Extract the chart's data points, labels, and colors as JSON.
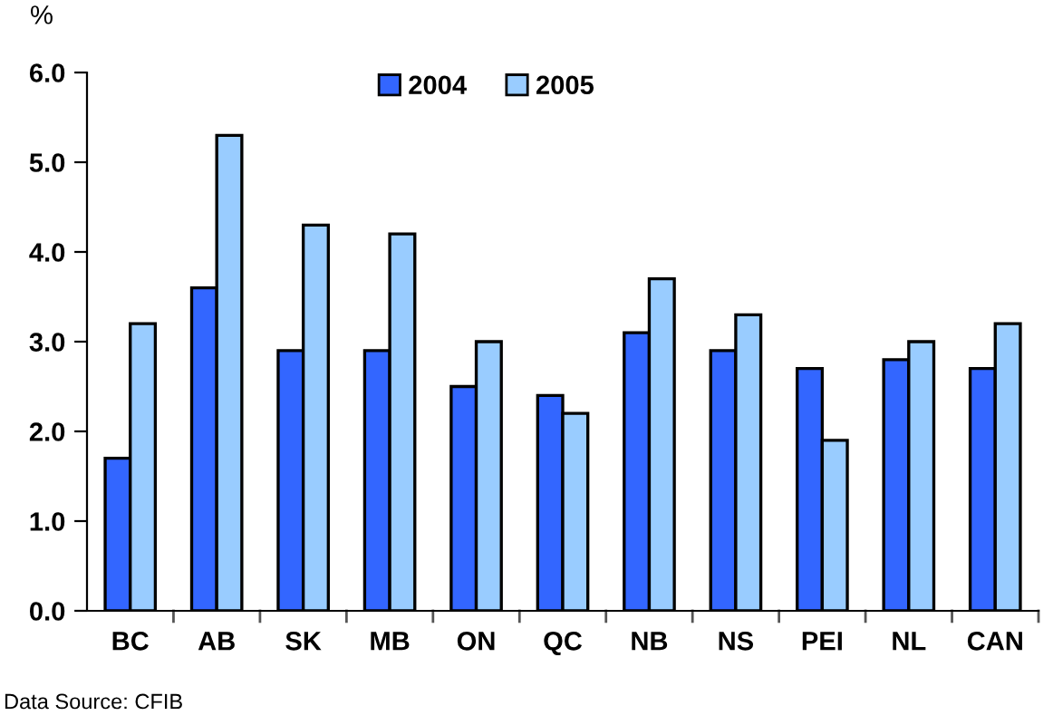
{
  "chart_data": {
    "type": "bar",
    "ylabel": "%",
    "categories": [
      "BC",
      "AB",
      "SK",
      "MB",
      "ON",
      "QC",
      "NB",
      "NS",
      "PEI",
      "NL",
      "CAN"
    ],
    "series": [
      {
        "name": "2004",
        "color": "#3366ff",
        "values": [
          1.7,
          3.6,
          2.9,
          2.9,
          2.5,
          2.4,
          3.1,
          2.9,
          2.7,
          2.8,
          2.7
        ]
      },
      {
        "name": "2005",
        "color": "#99ccff",
        "values": [
          3.2,
          5.3,
          4.3,
          4.2,
          3.0,
          2.2,
          3.7,
          3.3,
          1.9,
          3.0,
          3.2
        ]
      }
    ],
    "ylim": [
      0,
      6
    ],
    "yticks": [
      {
        "value": 0,
        "label": "0.0"
      },
      {
        "value": 1,
        "label": "1.0"
      },
      {
        "value": 2,
        "label": "2.0"
      },
      {
        "value": 3,
        "label": "3.0"
      },
      {
        "value": 4,
        "label": "4.0"
      },
      {
        "value": 5,
        "label": "5.0"
      },
      {
        "value": 6,
        "label": "6.0"
      }
    ],
    "grid": false,
    "legend": "top",
    "annotations": [
      "Data Source: CFIB"
    ]
  }
}
